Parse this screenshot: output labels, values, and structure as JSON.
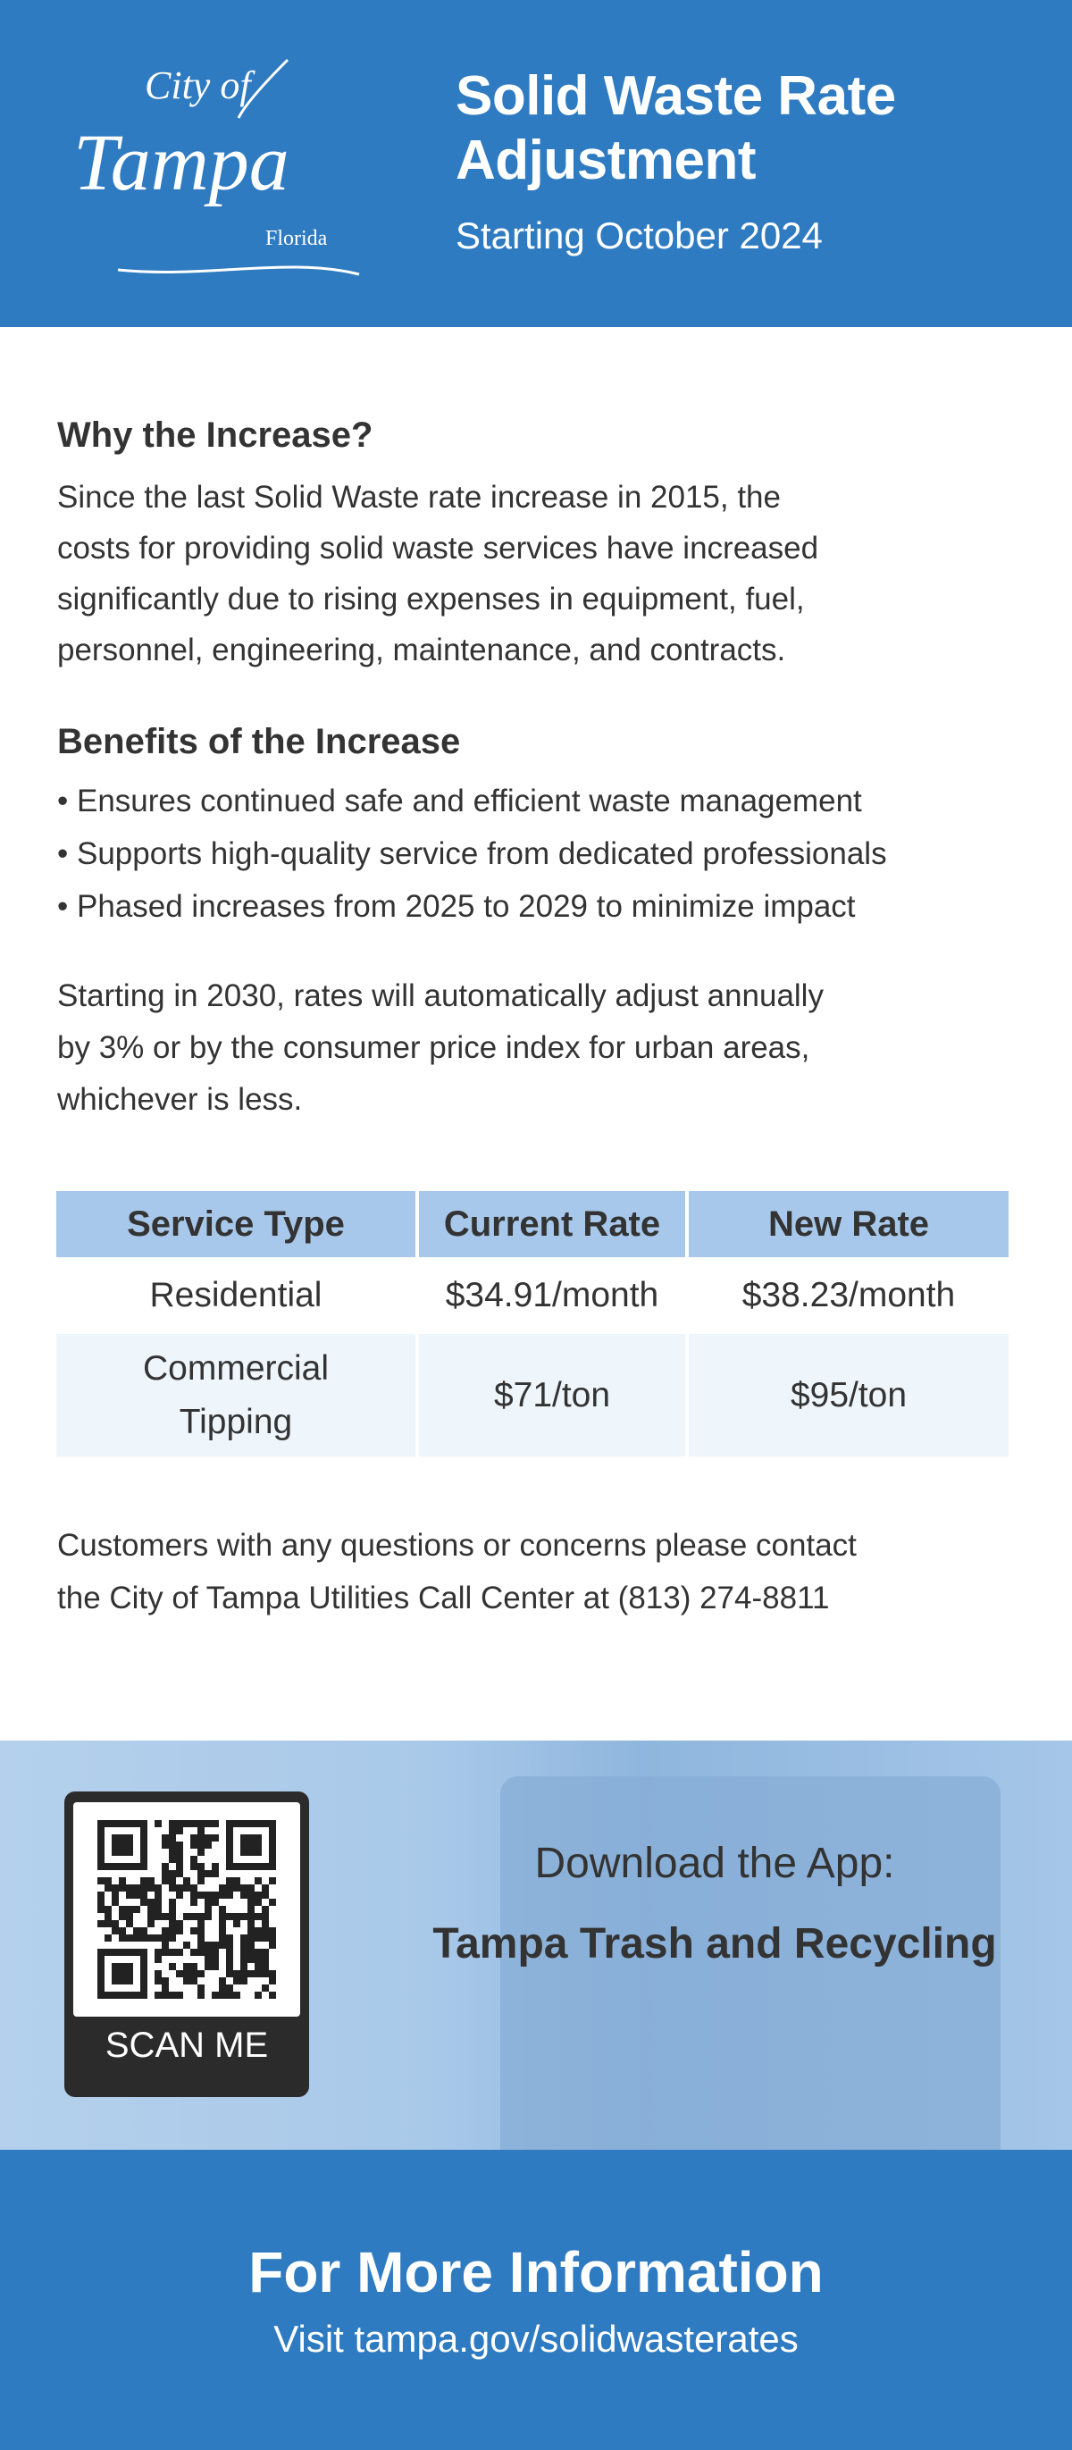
{
  "colors": {
    "brand_blue": "#2f7bc1",
    "table_header": "#a7c8ea",
    "table_alt_row": "#eef5fb"
  },
  "header": {
    "logo_text": {
      "city_of": "City of",
      "tampa": "Tampa",
      "florida": "Florida"
    },
    "title_line1": "Solid Waste Rate",
    "title_line2": "Adjustment",
    "subtitle": "Starting October 2024"
  },
  "why": {
    "heading": "Why the Increase?",
    "lines": [
      "Since the last Solid Waste rate increase in 2015, the",
      "costs for providing solid waste services have increased",
      "significantly due to rising expenses in equipment, fuel,",
      "personnel, engineering, maintenance, and contracts."
    ]
  },
  "benefits": {
    "heading": "Benefits of the Increase",
    "items": [
      "Ensures continued safe and efficient waste management",
      "Supports high-quality service from dedicated professionals",
      "Phased increases from 2025 to 2029 to minimize impact"
    ]
  },
  "adjust": {
    "lines": [
      "Starting in 2030, rates will automatically adjust annually",
      "by 3% or by the consumer price index for urban areas,",
      "whichever is less."
    ]
  },
  "table": {
    "headers": [
      "Service Type",
      "Current Rate",
      "New Rate"
    ],
    "rows": [
      [
        "Residential",
        "$34.91/month",
        "$38.23/month"
      ],
      [
        "Commercial Tipping",
        "$71/ton",
        "$95/ton"
      ]
    ],
    "row2_line1": "Commercial",
    "row2_line2": "Tipping"
  },
  "contact": {
    "lines": [
      "Customers with any questions or concerns please contact",
      "the City of Tampa Utilities Call Center at (813) 274-8811"
    ]
  },
  "app": {
    "qr_label": "SCAN ME",
    "download": "Download the App:",
    "name": "Tampa Trash and Recycling"
  },
  "footer": {
    "heading": "For More Information",
    "visit": "Visit tampa.gov/solidwasterates"
  }
}
